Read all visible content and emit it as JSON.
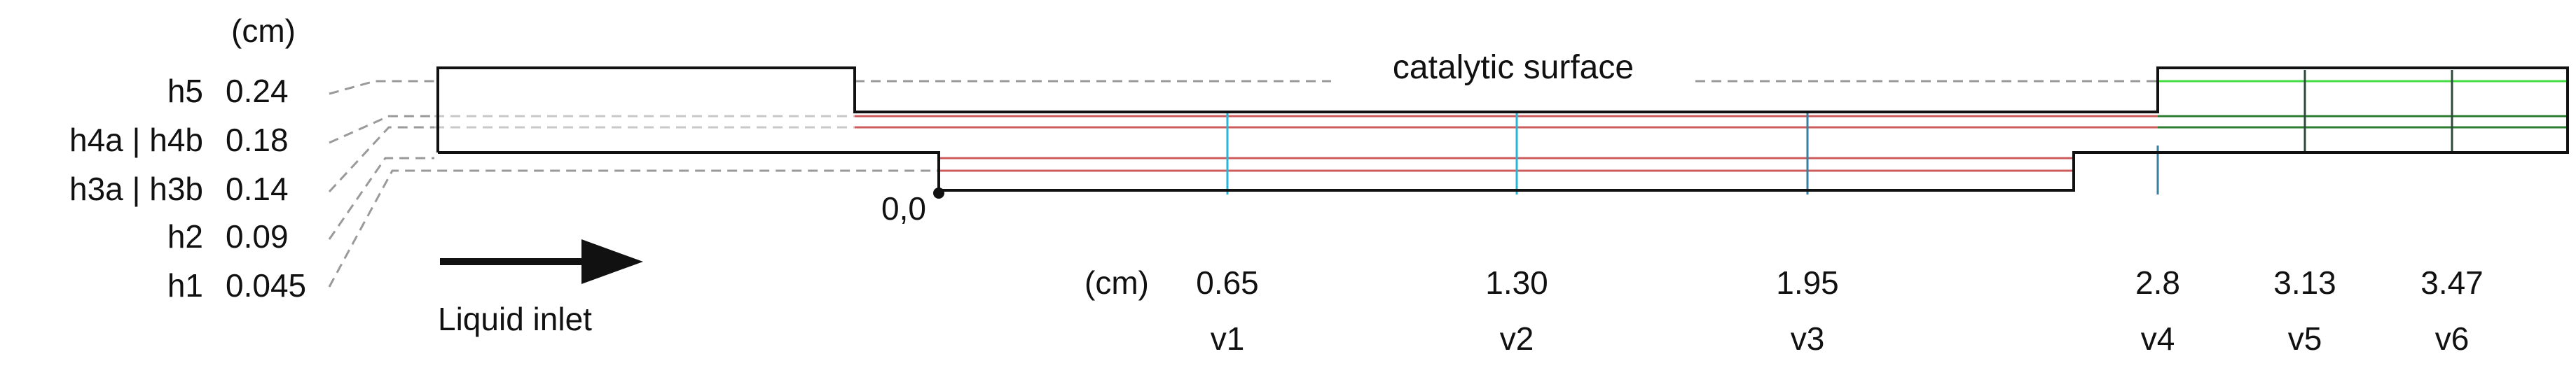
{
  "units_top": "(cm)",
  "units_bottom": "(cm)",
  "heights": [
    {
      "name": "h5",
      "value": "0.24"
    },
    {
      "name": "h4a | h4b",
      "value": "0.18"
    },
    {
      "name": "h3a | h3b",
      "value": "0.14"
    },
    {
      "name": "h2",
      "value": "0.09"
    },
    {
      "name": "h1",
      "value": "0.045"
    }
  ],
  "origin_label": "0,0",
  "catalytic_surface_label": "catalytic surface",
  "inlet_label": "Liquid inlet",
  "verticals": [
    {
      "name": "v1",
      "value": "0.65"
    },
    {
      "name": "v2",
      "value": "1.30"
    },
    {
      "name": "v3",
      "value": "1.95"
    },
    {
      "name": "v4",
      "value": "2.8"
    },
    {
      "name": "v5",
      "value": "3.13"
    },
    {
      "name": "v6",
      "value": "3.47"
    }
  ],
  "colors": {
    "outline": "#111111",
    "guide": "#9a9a9a",
    "red_line": "#cc5c5c",
    "green_bright": "#44dd44",
    "green_dark": "#2e7d32",
    "cyan": "#29b6d6",
    "blue_dark": "#3a7fa0"
  }
}
